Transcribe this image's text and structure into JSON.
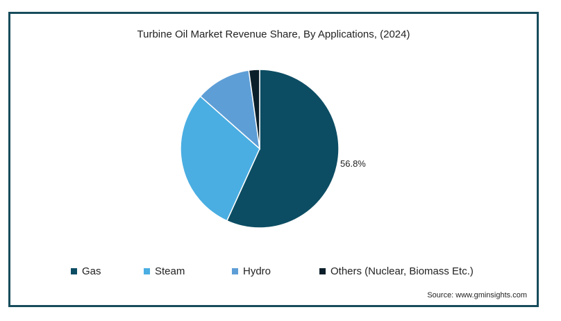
{
  "chart_data": {
    "type": "pie",
    "title": "Turbine Oil Market Revenue Share, By Applications, (2024)",
    "slices": [
      {
        "name": "Gas",
        "value": 56.8,
        "color": "#0c4d63",
        "label": "56.8%"
      },
      {
        "name": "Steam",
        "value": 29.7,
        "color": "#4aaee2",
        "label": ""
      },
      {
        "name": "Hydro",
        "value": 11.3,
        "color": "#5e9ed6",
        "label": ""
      },
      {
        "name": "Others (Nuclear, Biomass Etc.)",
        "value": 2.2,
        "color": "#0b1f2a",
        "label": ""
      }
    ],
    "legend_position": "bottom",
    "source": "Source: www.gminsights.com"
  }
}
